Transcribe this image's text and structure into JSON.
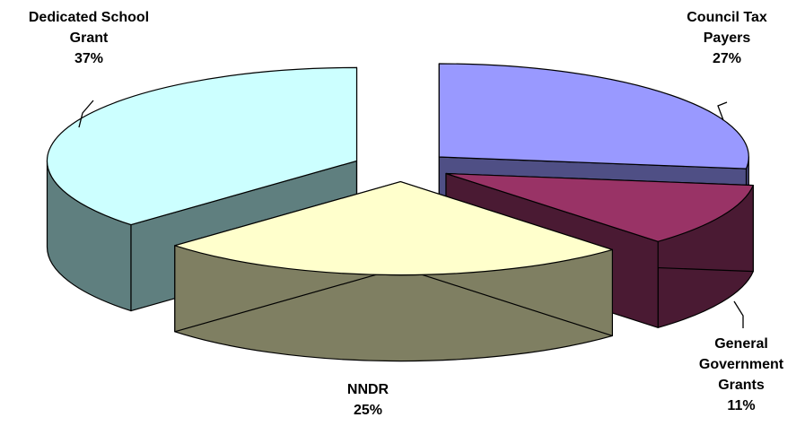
{
  "chart_data": {
    "type": "pie",
    "style": "3d-exploded",
    "slices": [
      {
        "name": "Council Tax Payers",
        "label_lines": [
          "Council Tax",
          "Payers"
        ],
        "percent_label": "27%",
        "value": 27,
        "color": "#9999ff",
        "side_color": "#4f4f85"
      },
      {
        "name": "General Government Grants",
        "label_lines": [
          "General",
          "Government",
          "Grants"
        ],
        "percent_label": "11%",
        "value": 11,
        "color": "#993366",
        "side_color": "#4a1a33"
      },
      {
        "name": "NNDR",
        "label_lines": [
          "NNDR"
        ],
        "percent_label": "25%",
        "value": 25,
        "color": "#ffffcc",
        "side_color": "#7f7f62"
      },
      {
        "name": "Dedicated School Grant",
        "label_lines": [
          "Dedicated School",
          "Grant"
        ],
        "percent_label": "37%",
        "value": 37,
        "color": "#ccffff",
        "side_color": "#5f7f7f"
      }
    ],
    "legend": "none"
  }
}
